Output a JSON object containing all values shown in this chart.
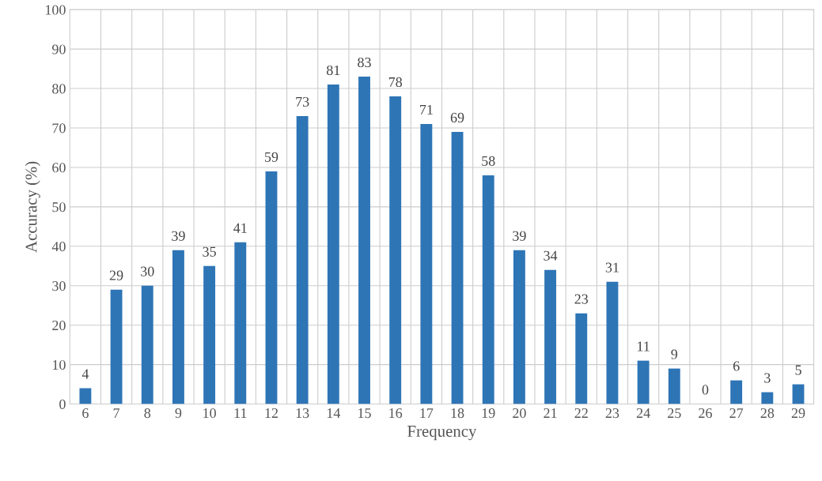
{
  "chart_data": {
    "type": "bar",
    "xlabel": "Frequency",
    "ylabel": "Accuracy (%)",
    "categories": [
      "6",
      "7",
      "8",
      "9",
      "10",
      "11",
      "12",
      "13",
      "14",
      "15",
      "16",
      "17",
      "18",
      "19",
      "20",
      "21",
      "22",
      "23",
      "24",
      "25",
      "26",
      "27",
      "28",
      "29"
    ],
    "values": [
      4,
      29,
      30,
      39,
      35,
      41,
      59,
      73,
      81,
      83,
      78,
      71,
      69,
      58,
      39,
      34,
      23,
      31,
      11,
      9,
      0,
      6,
      3,
      5
    ],
    "color": "#2e75b6",
    "ylim": [
      0,
      100
    ],
    "yticks": [
      0,
      10,
      20,
      30,
      40,
      50,
      60,
      70,
      80,
      90,
      100
    ],
    "grid": true,
    "data_labels": true
  }
}
